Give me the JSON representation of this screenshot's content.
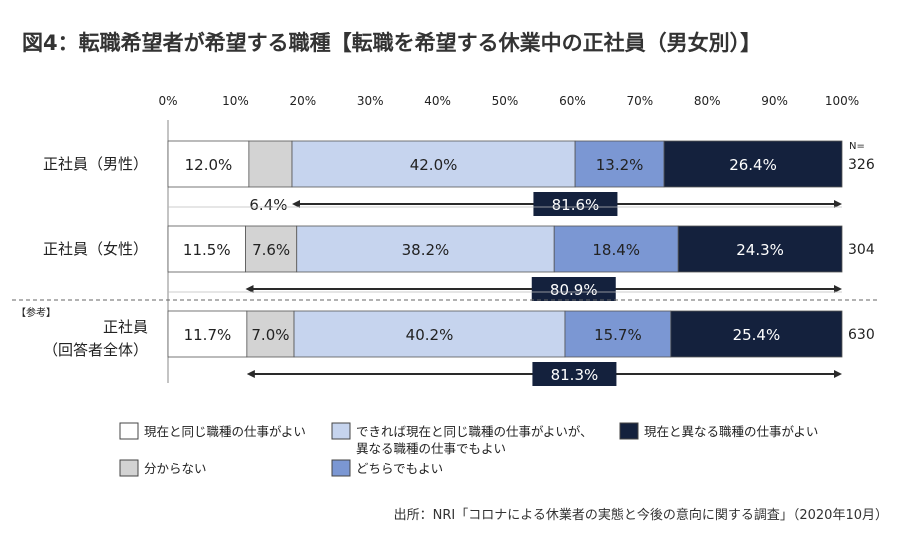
{
  "chart_data": {
    "type": "bar",
    "orientation": "horizontal",
    "stacked": true,
    "title": "図4：転職希望者が希望する職種【転職を希望する休業中の正社員（男女別）】",
    "x_ticks": [
      "0%",
      "10%",
      "20%",
      "30%",
      "40%",
      "50%",
      "60%",
      "70%",
      "80%",
      "90%",
      "100%"
    ],
    "xlim": [
      0,
      100
    ],
    "n_header": "N=",
    "reference_tag": "【参考】",
    "categories": [
      {
        "label_lines": [
          "正社員（男性）"
        ],
        "n": "326"
      },
      {
        "label_lines": [
          "正社員（女性）"
        ],
        "n": "304"
      },
      {
        "label_lines": [
          "正社員",
          "（回答者全体）"
        ],
        "n": "630"
      }
    ],
    "series": [
      {
        "name": "現在と同じ職種の仕事がよい",
        "color": "#ffffff",
        "values": [
          12.0,
          11.5,
          11.7
        ],
        "labels": [
          "12.0%",
          "11.5%",
          "11.7%"
        ]
      },
      {
        "name": "分からない",
        "color": "#d3d3d3",
        "values": [
          6.4,
          7.6,
          7.0
        ],
        "labels": [
          "6.4%",
          "7.6%",
          "7.0%"
        ]
      },
      {
        "name": "できれば現在と同じ職種の仕事がよいが、異なる職種の仕事でもよい",
        "name_lines": [
          "できれば現在と同じ職種の仕事がよいが、",
          "異なる職種の仕事でもよい"
        ],
        "color": "#c6d4ee",
        "values": [
          42.0,
          38.2,
          40.2
        ],
        "labels": [
          "42.0%",
          "38.2%",
          "40.2%"
        ]
      },
      {
        "name": "どちらでもよい",
        "color": "#7b97d3",
        "values": [
          13.2,
          18.4,
          15.7
        ],
        "labels": [
          "13.2%",
          "18.4%",
          "15.7%"
        ]
      },
      {
        "name": "現在と異なる職種の仕事がよい",
        "color": "#14213d",
        "values": [
          26.4,
          24.3,
          25.4
        ],
        "labels": [
          "26.4%",
          "24.3%",
          "25.4%"
        ]
      }
    ],
    "sum_labels": [
      "81.6%",
      "80.9%",
      "81.3%"
    ],
    "source": "出所：NRI「コロナによる休業者の実態と今後の意向に関する調査」（2020年10月）",
    "grid": false
  }
}
